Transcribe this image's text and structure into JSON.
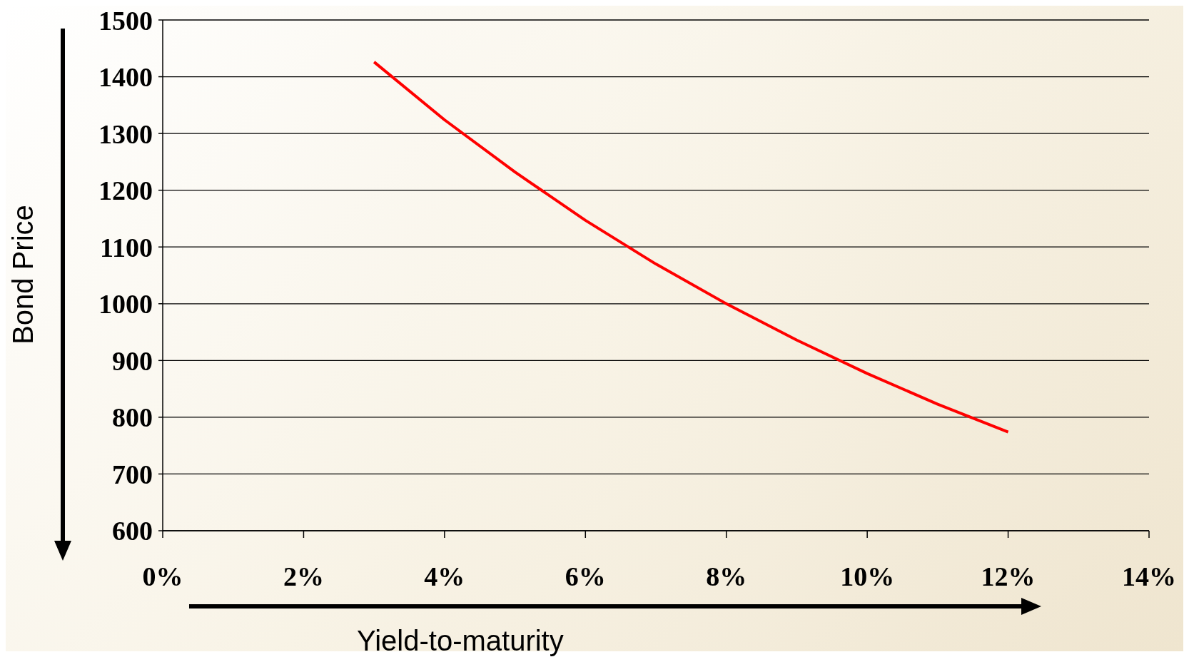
{
  "chart_data": {
    "type": "line",
    "xlabel": "Yield-to-maturity",
    "ylabel": "Bond Price",
    "x": [
      3,
      4,
      5,
      6,
      7,
      8,
      9,
      10,
      11,
      12
    ],
    "series": [
      {
        "color": "#ff0000",
        "values": [
          1426,
          1324,
          1232,
          1147,
          1070,
          1000,
          936,
          877,
          823,
          774
        ]
      }
    ],
    "xlim": [
      0,
      14
    ],
    "xticks": [
      {
        "value": 0,
        "label": "0%"
      },
      {
        "value": 2,
        "label": "2%"
      },
      {
        "value": 4,
        "label": "4%"
      },
      {
        "value": 6,
        "label": "6%"
      },
      {
        "value": 8,
        "label": "8%"
      },
      {
        "value": 10,
        "label": "10%"
      },
      {
        "value": 12,
        "label": "12%"
      },
      {
        "value": 14,
        "label": "14%"
      }
    ],
    "ylim": [
      600,
      1500
    ],
    "yticks": [
      600,
      700,
      800,
      900,
      1000,
      1100,
      1200,
      1300,
      1400,
      1500
    ],
    "grid": "y",
    "marker": "none",
    "line_style": "solid",
    "legend": false
  }
}
